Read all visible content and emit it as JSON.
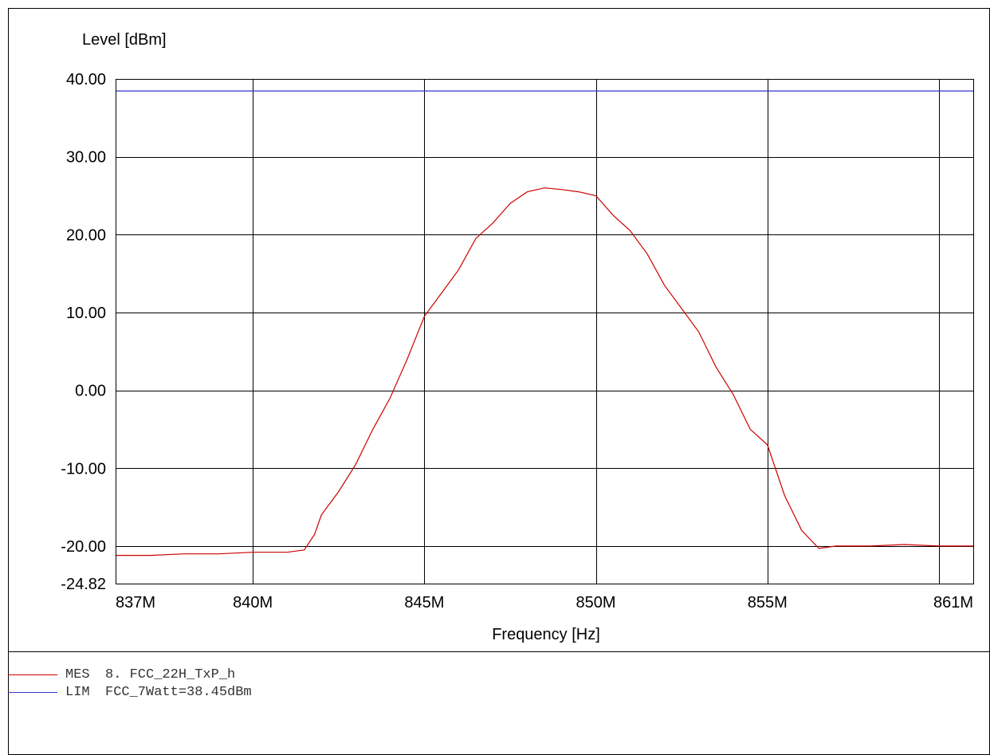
{
  "chart_data": {
    "type": "line",
    "ylabel": "Level [dBm]",
    "xlabel": "Frequency [Hz]",
    "ylim": [
      -24.82,
      40.0
    ],
    "xlim": [
      836.0,
      861.0
    ],
    "yticks": [
      {
        "v": 40.0,
        "label": "40.00"
      },
      {
        "v": 30.0,
        "label": "30.00"
      },
      {
        "v": 20.0,
        "label": "20.00"
      },
      {
        "v": 10.0,
        "label": "10.00"
      },
      {
        "v": 0.0,
        "label": "0.00"
      },
      {
        "v": -10.0,
        "label": "-10.00"
      },
      {
        "v": -20.0,
        "label": "-20.00"
      },
      {
        "v": -24.82,
        "label": "-24.82"
      }
    ],
    "xticks": [
      {
        "v": 837,
        "label": "837M"
      },
      {
        "v": 840,
        "label": "840M"
      },
      {
        "v": 845,
        "label": "845M"
      },
      {
        "v": 850,
        "label": "850M"
      },
      {
        "v": 855,
        "label": "855M"
      },
      {
        "v": 861,
        "label": "861M"
      }
    ],
    "xgrid": [
      840,
      845,
      850,
      855,
      860
    ],
    "grid": true,
    "series": [
      {
        "name": "MES",
        "color": "#cc0000",
        "x": [
          836.0,
          837.0,
          838.0,
          839.0,
          840.0,
          841.0,
          841.5,
          841.8,
          842.0,
          842.5,
          843.0,
          843.5,
          844.0,
          844.5,
          845.0,
          845.5,
          846.0,
          846.5,
          847.0,
          847.5,
          848.0,
          848.5,
          849.0,
          849.5,
          850.0,
          850.5,
          851.0,
          851.5,
          852.0,
          852.5,
          853.0,
          853.5,
          854.0,
          854.5,
          855.0,
          855.5,
          856.0,
          856.5,
          857.0,
          858.0,
          859.0,
          860.0,
          861.0
        ],
        "y": [
          -21.2,
          -21.2,
          -21.0,
          -21.0,
          -20.8,
          -20.8,
          -20.5,
          -18.5,
          -16.0,
          -13.0,
          -9.5,
          -5.0,
          -1.0,
          4.0,
          9.5,
          12.5,
          15.5,
          19.5,
          21.5,
          24.0,
          25.5,
          26.0,
          25.8,
          25.5,
          25.0,
          22.5,
          20.5,
          17.5,
          13.5,
          10.5,
          7.5,
          3.0,
          -0.5,
          -5.0,
          -7.0,
          -13.5,
          -18.0,
          -20.3,
          -20.0,
          -20.0,
          -19.8,
          -20.0,
          -20.0
        ]
      },
      {
        "name": "LIM",
        "color": "#3333cc",
        "x": [
          836.0,
          861.0
        ],
        "y": [
          38.45,
          38.45
        ]
      }
    ],
    "legend": [
      {
        "tag": "MES",
        "text": "8. FCC_22H_TxP_h",
        "color": "#cc0000"
      },
      {
        "tag": "LIM",
        "text": "FCC_7Watt=38.45dBm",
        "color": "#3333cc"
      }
    ]
  }
}
